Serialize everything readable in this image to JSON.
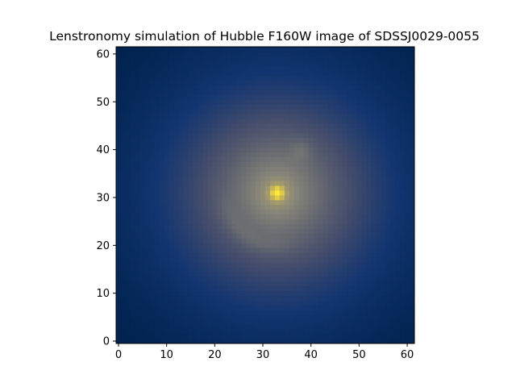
{
  "chart_data": {
    "type": "heatmap",
    "title": "Lenstronomy simulation of Hubble F160W image of SDSSJ0029-0055",
    "xlabel": "",
    "ylabel": "",
    "xlim": [
      -0.5,
      61.5
    ],
    "ylim": [
      -0.5,
      61.5
    ],
    "grid_size": [
      62,
      62
    ],
    "colormap": "cividis",
    "origin": "lower",
    "x_ticks": [
      0,
      10,
      20,
      30,
      40,
      50,
      60
    ],
    "y_ticks": [
      0,
      10,
      20,
      30,
      40,
      50,
      60
    ],
    "x_tick_labels": [
      "0",
      "10",
      "20",
      "30",
      "40",
      "50",
      "60"
    ],
    "y_tick_labels": [
      "0",
      "10",
      "20",
      "30",
      "40",
      "50",
      "60"
    ],
    "features": {
      "lens_galaxy_peak": {
        "x": 33,
        "y": 31,
        "relative_intensity": 1.0
      },
      "einstein_ring": {
        "center": [
          33,
          31
        ],
        "radius": 11,
        "visible_from_deg": 170,
        "visible_to_deg": 300
      },
      "counter_image": {
        "x": 38,
        "y": 40,
        "relative_intensity": 0.08
      }
    },
    "grid": false,
    "colorbar": false
  }
}
